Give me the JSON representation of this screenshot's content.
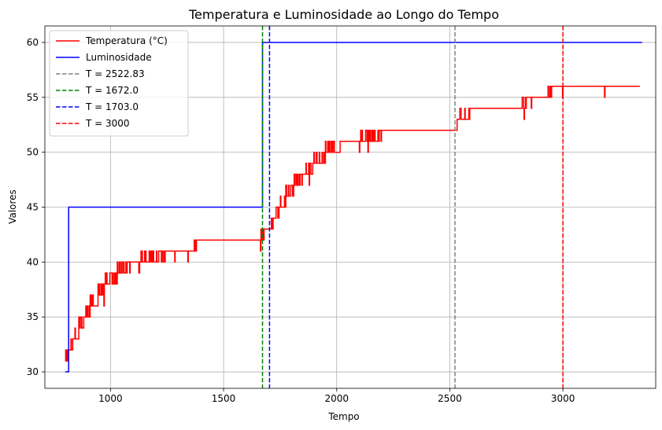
{
  "chart_data": {
    "type": "line",
    "title": "Temperatura e Luminosidade ao Longo do Tempo",
    "xlabel": "Tempo",
    "ylabel": "Valores",
    "xlim": [
      710,
      3410
    ],
    "ylim": [
      28.5,
      61.5
    ],
    "xticks": [
      1000,
      1500,
      2000,
      2500,
      3000
    ],
    "yticks": [
      30,
      35,
      40,
      45,
      50,
      55,
      60
    ],
    "xtick_labels": [
      "1000",
      "1500",
      "2000",
      "2500",
      "3000"
    ],
    "ytick_labels": [
      "30",
      "35",
      "40",
      "45",
      "50",
      "55",
      "60"
    ],
    "grid": true,
    "legend_position": "top-left",
    "series": [
      {
        "name": "Temperatura (°C)",
        "color": "#ff0000",
        "style": "step-noisy",
        "points": [
          [
            800,
            31
          ],
          [
            815,
            32
          ],
          [
            835,
            33
          ],
          [
            860,
            34
          ],
          [
            885,
            35
          ],
          [
            910,
            36
          ],
          [
            945,
            37
          ],
          [
            975,
            38
          ],
          [
            1030,
            39
          ],
          [
            1075,
            40
          ],
          [
            1135,
            40
          ],
          [
            1240,
            41
          ],
          [
            1370,
            41
          ],
          [
            1380,
            42
          ],
          [
            1470,
            42
          ],
          [
            1535,
            42
          ],
          [
            1665,
            42
          ],
          [
            1680,
            43
          ],
          [
            1705,
            43
          ],
          [
            1720,
            44
          ],
          [
            1745,
            45
          ],
          [
            1775,
            46
          ],
          [
            1810,
            47
          ],
          [
            1850,
            48
          ],
          [
            1895,
            49
          ],
          [
            1950,
            50
          ],
          [
            2015,
            51
          ],
          [
            2100,
            51
          ],
          [
            2200,
            52
          ],
          [
            2480,
            52
          ],
          [
            2520,
            52
          ],
          [
            2540,
            53
          ],
          [
            2590,
            54
          ],
          [
            2820,
            54
          ],
          [
            2840,
            55
          ],
          [
            2920,
            55
          ],
          [
            2950,
            56
          ],
          [
            3340,
            56
          ]
        ]
      },
      {
        "name": "Luminosidade",
        "color": "#0000ff",
        "style": "step",
        "points": [
          [
            800,
            30
          ],
          [
            815,
            30
          ],
          [
            815,
            45
          ],
          [
            1672,
            45
          ],
          [
            1672,
            60
          ],
          [
            3350,
            60
          ]
        ]
      }
    ],
    "vlines": [
      {
        "name": "T = 2522.83",
        "x": 2522.83,
        "color": "#808080"
      },
      {
        "name": "T = 1672.0",
        "x": 1672.0,
        "color": "#008000"
      },
      {
        "name": "T = 1703.0",
        "x": 1703.0,
        "color": "#0000ff"
      },
      {
        "name": "T = 3000",
        "x": 3000,
        "color": "#ff0000"
      }
    ]
  }
}
